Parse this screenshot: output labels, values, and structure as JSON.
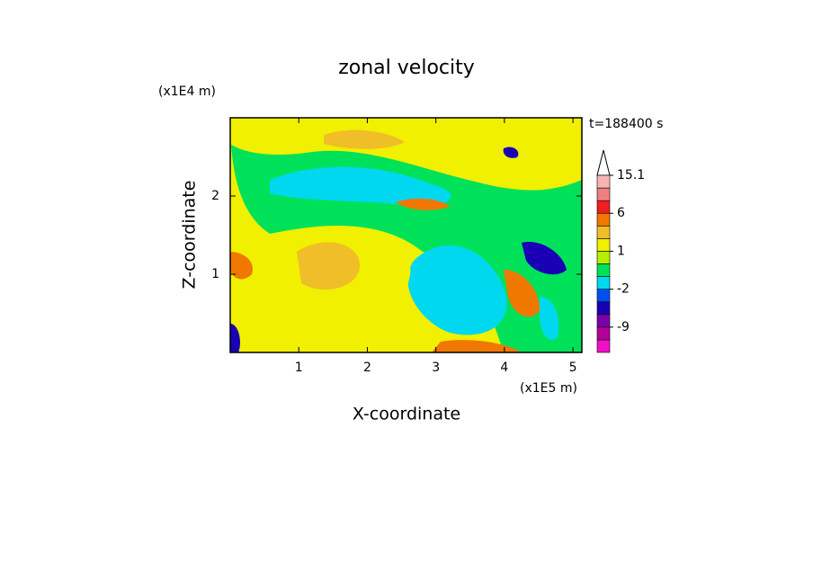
{
  "chart_data": {
    "type": "contour",
    "title": "zonal velocity",
    "x_label": "X-coordinate",
    "y_label": "Z-coordinate",
    "x_unit": "(x1E5 m)",
    "y_unit": "(x1E4 m)",
    "time_label": "t=188400 s",
    "xlim": [
      0,
      5.13
    ],
    "xticks": [
      1,
      2,
      3,
      4,
      5
    ],
    "ylim": [
      0,
      3
    ],
    "yticks": [
      1,
      2
    ],
    "colorbar": {
      "levels": [
        -15,
        -12,
        -9,
        -6,
        -4,
        -2,
        -1,
        0,
        1,
        2,
        4,
        6,
        9,
        12,
        15.1
      ],
      "colors": [
        "#f00fc8",
        "#b4009b",
        "#7a00a8",
        "#1a00b4",
        "#0050f0",
        "#00d8f0",
        "#00e15a",
        "#b4f000",
        "#f0f000",
        "#f0be28",
        "#f07800",
        "#f01e1e",
        "#f08080",
        "#f8b4b4"
      ],
      "ticks": [
        -9,
        -2,
        1,
        6,
        15.1
      ]
    }
  }
}
